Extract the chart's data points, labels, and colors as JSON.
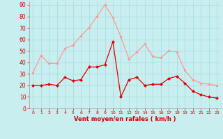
{
  "hours": [
    0,
    1,
    2,
    3,
    4,
    5,
    6,
    7,
    8,
    9,
    10,
    11,
    12,
    13,
    14,
    15,
    16,
    17,
    18,
    19,
    20,
    21,
    22,
    23
  ],
  "wind_avg": [
    20,
    20,
    21,
    20,
    27,
    24,
    25,
    36,
    36,
    38,
    58,
    10,
    25,
    27,
    20,
    21,
    21,
    26,
    28,
    22,
    15,
    12,
    10,
    9
  ],
  "wind_gust": [
    31,
    46,
    39,
    39,
    52,
    55,
    63,
    70,
    80,
    90,
    79,
    62,
    43,
    49,
    56,
    45,
    44,
    50,
    49,
    33,
    25,
    22,
    21,
    20
  ],
  "bg_color": "#c8eef0",
  "grid_color": "#aadddd",
  "avg_color": "#dd0000",
  "gust_color": "#ff9999",
  "xlabel": "Vent moyen/en rafales ( km/h )",
  "xlabel_color": "#cc0000",
  "tick_color": "#cc0000",
  "yticks": [
    0,
    10,
    20,
    30,
    40,
    50,
    60,
    70,
    80,
    90
  ],
  "ylim": [
    0,
    93
  ],
  "xlim": [
    -0.5,
    23.5
  ]
}
